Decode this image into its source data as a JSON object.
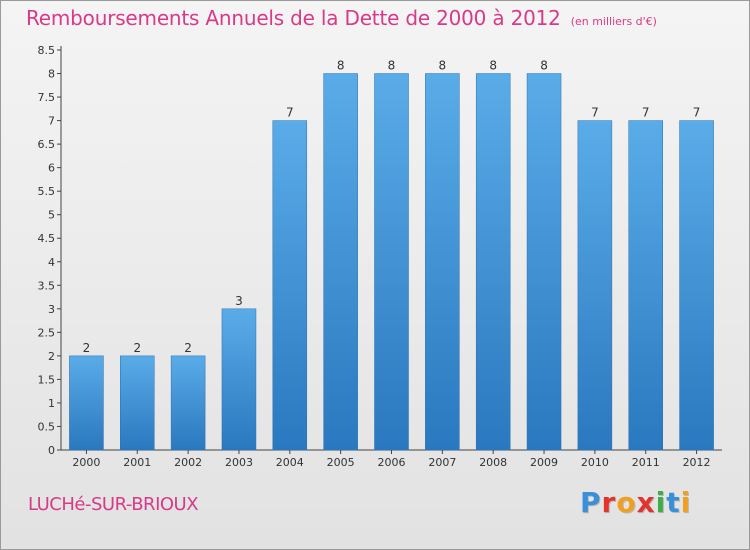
{
  "header": {
    "title": "Remboursements Annuels de la Dette de 2000 à 2012",
    "subtitle": "(en milliers d'€)"
  },
  "footer": {
    "commune": "LUCHé-SUR-BRIOUX",
    "brand_letters": [
      {
        "char": "P",
        "color": "#3a8fd9"
      },
      {
        "char": "r",
        "color": "#e2332c"
      },
      {
        "char": "o",
        "color": "#f0a020"
      },
      {
        "char": "x",
        "color": "#e2332c"
      },
      {
        "char": "i",
        "color": "#3fae49"
      },
      {
        "char": "t",
        "color": "#3a8fd9"
      },
      {
        "char": "i",
        "color": "#f0a020"
      }
    ]
  },
  "chart_data": {
    "type": "bar",
    "title": "Remboursements Annuels de la Dette de 2000 à 2012",
    "subtitle": "(en milliers d'€)",
    "categories": [
      "2000",
      "2001",
      "2002",
      "2003",
      "2004",
      "2005",
      "2006",
      "2007",
      "2008",
      "2009",
      "2010",
      "2011",
      "2012"
    ],
    "values": [
      2,
      2,
      2,
      3,
      7,
      8,
      8,
      8,
      8,
      8,
      7,
      7,
      7
    ],
    "data_labels": [
      "2",
      "2",
      "2",
      "3",
      "7",
      "8",
      "8",
      "8",
      "8",
      "8",
      "7",
      "7",
      "7"
    ],
    "yticks": [
      "0",
      "0.5",
      "1",
      "1.5",
      "2",
      "2.5",
      "3",
      "3.5",
      "4",
      "4.5",
      "5",
      "5.5",
      "6",
      "6.5",
      "7",
      "7.5",
      "8",
      "8.5"
    ],
    "ylim": [
      0,
      8.5
    ],
    "bar_color": "#3d8fd6",
    "grid": false,
    "legend": "none"
  }
}
